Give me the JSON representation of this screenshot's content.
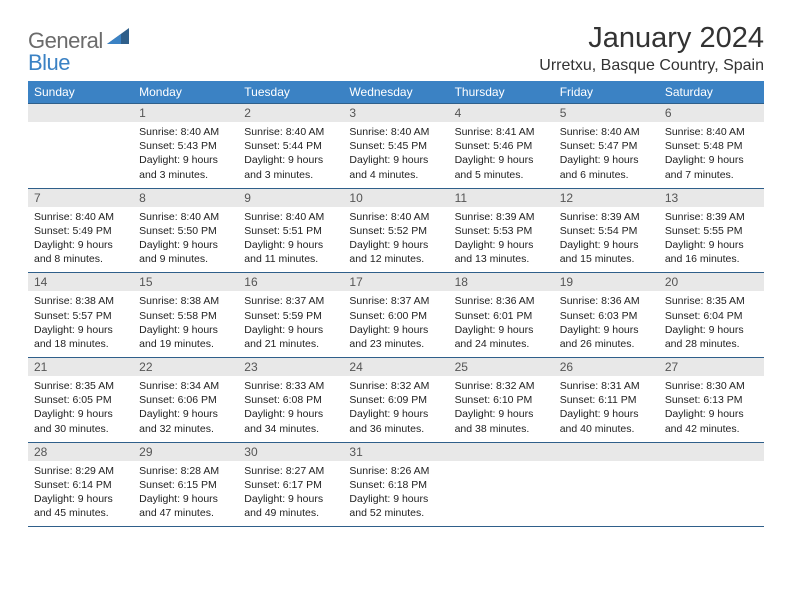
{
  "brand": {
    "part1": "General",
    "part2": "Blue"
  },
  "title": "January 2024",
  "location": "Urretxu, Basque Country, Spain",
  "colors": {
    "header_bg": "#3b82c4",
    "header_text": "#ffffff",
    "daynum_bg": "#e8e8e8",
    "daynum_text": "#555555",
    "rule": "#2f5f8a",
    "body_text": "#222222",
    "background": "#ffffff"
  },
  "typography": {
    "title_fontsize": 29,
    "location_fontsize": 16,
    "header_fontsize": 12,
    "daynum_fontsize": 12,
    "detail_fontsize": 10.5
  },
  "day_labels": [
    "Sunday",
    "Monday",
    "Tuesday",
    "Wednesday",
    "Thursday",
    "Friday",
    "Saturday"
  ],
  "weeks": [
    [
      {
        "n": "",
        "sr": "",
        "ss": "",
        "dl": ""
      },
      {
        "n": "1",
        "sr": "Sunrise: 8:40 AM",
        "ss": "Sunset: 5:43 PM",
        "dl": "Daylight: 9 hours and 3 minutes."
      },
      {
        "n": "2",
        "sr": "Sunrise: 8:40 AM",
        "ss": "Sunset: 5:44 PM",
        "dl": "Daylight: 9 hours and 3 minutes."
      },
      {
        "n": "3",
        "sr": "Sunrise: 8:40 AM",
        "ss": "Sunset: 5:45 PM",
        "dl": "Daylight: 9 hours and 4 minutes."
      },
      {
        "n": "4",
        "sr": "Sunrise: 8:41 AM",
        "ss": "Sunset: 5:46 PM",
        "dl": "Daylight: 9 hours and 5 minutes."
      },
      {
        "n": "5",
        "sr": "Sunrise: 8:40 AM",
        "ss": "Sunset: 5:47 PM",
        "dl": "Daylight: 9 hours and 6 minutes."
      },
      {
        "n": "6",
        "sr": "Sunrise: 8:40 AM",
        "ss": "Sunset: 5:48 PM",
        "dl": "Daylight: 9 hours and 7 minutes."
      }
    ],
    [
      {
        "n": "7",
        "sr": "Sunrise: 8:40 AM",
        "ss": "Sunset: 5:49 PM",
        "dl": "Daylight: 9 hours and 8 minutes."
      },
      {
        "n": "8",
        "sr": "Sunrise: 8:40 AM",
        "ss": "Sunset: 5:50 PM",
        "dl": "Daylight: 9 hours and 9 minutes."
      },
      {
        "n": "9",
        "sr": "Sunrise: 8:40 AM",
        "ss": "Sunset: 5:51 PM",
        "dl": "Daylight: 9 hours and 11 minutes."
      },
      {
        "n": "10",
        "sr": "Sunrise: 8:40 AM",
        "ss": "Sunset: 5:52 PM",
        "dl": "Daylight: 9 hours and 12 minutes."
      },
      {
        "n": "11",
        "sr": "Sunrise: 8:39 AM",
        "ss": "Sunset: 5:53 PM",
        "dl": "Daylight: 9 hours and 13 minutes."
      },
      {
        "n": "12",
        "sr": "Sunrise: 8:39 AM",
        "ss": "Sunset: 5:54 PM",
        "dl": "Daylight: 9 hours and 15 minutes."
      },
      {
        "n": "13",
        "sr": "Sunrise: 8:39 AM",
        "ss": "Sunset: 5:55 PM",
        "dl": "Daylight: 9 hours and 16 minutes."
      }
    ],
    [
      {
        "n": "14",
        "sr": "Sunrise: 8:38 AM",
        "ss": "Sunset: 5:57 PM",
        "dl": "Daylight: 9 hours and 18 minutes."
      },
      {
        "n": "15",
        "sr": "Sunrise: 8:38 AM",
        "ss": "Sunset: 5:58 PM",
        "dl": "Daylight: 9 hours and 19 minutes."
      },
      {
        "n": "16",
        "sr": "Sunrise: 8:37 AM",
        "ss": "Sunset: 5:59 PM",
        "dl": "Daylight: 9 hours and 21 minutes."
      },
      {
        "n": "17",
        "sr": "Sunrise: 8:37 AM",
        "ss": "Sunset: 6:00 PM",
        "dl": "Daylight: 9 hours and 23 minutes."
      },
      {
        "n": "18",
        "sr": "Sunrise: 8:36 AM",
        "ss": "Sunset: 6:01 PM",
        "dl": "Daylight: 9 hours and 24 minutes."
      },
      {
        "n": "19",
        "sr": "Sunrise: 8:36 AM",
        "ss": "Sunset: 6:03 PM",
        "dl": "Daylight: 9 hours and 26 minutes."
      },
      {
        "n": "20",
        "sr": "Sunrise: 8:35 AM",
        "ss": "Sunset: 6:04 PM",
        "dl": "Daylight: 9 hours and 28 minutes."
      }
    ],
    [
      {
        "n": "21",
        "sr": "Sunrise: 8:35 AM",
        "ss": "Sunset: 6:05 PM",
        "dl": "Daylight: 9 hours and 30 minutes."
      },
      {
        "n": "22",
        "sr": "Sunrise: 8:34 AM",
        "ss": "Sunset: 6:06 PM",
        "dl": "Daylight: 9 hours and 32 minutes."
      },
      {
        "n": "23",
        "sr": "Sunrise: 8:33 AM",
        "ss": "Sunset: 6:08 PM",
        "dl": "Daylight: 9 hours and 34 minutes."
      },
      {
        "n": "24",
        "sr": "Sunrise: 8:32 AM",
        "ss": "Sunset: 6:09 PM",
        "dl": "Daylight: 9 hours and 36 minutes."
      },
      {
        "n": "25",
        "sr": "Sunrise: 8:32 AM",
        "ss": "Sunset: 6:10 PM",
        "dl": "Daylight: 9 hours and 38 minutes."
      },
      {
        "n": "26",
        "sr": "Sunrise: 8:31 AM",
        "ss": "Sunset: 6:11 PM",
        "dl": "Daylight: 9 hours and 40 minutes."
      },
      {
        "n": "27",
        "sr": "Sunrise: 8:30 AM",
        "ss": "Sunset: 6:13 PM",
        "dl": "Daylight: 9 hours and 42 minutes."
      }
    ],
    [
      {
        "n": "28",
        "sr": "Sunrise: 8:29 AM",
        "ss": "Sunset: 6:14 PM",
        "dl": "Daylight: 9 hours and 45 minutes."
      },
      {
        "n": "29",
        "sr": "Sunrise: 8:28 AM",
        "ss": "Sunset: 6:15 PM",
        "dl": "Daylight: 9 hours and 47 minutes."
      },
      {
        "n": "30",
        "sr": "Sunrise: 8:27 AM",
        "ss": "Sunset: 6:17 PM",
        "dl": "Daylight: 9 hours and 49 minutes."
      },
      {
        "n": "31",
        "sr": "Sunrise: 8:26 AM",
        "ss": "Sunset: 6:18 PM",
        "dl": "Daylight: 9 hours and 52 minutes."
      },
      {
        "n": "",
        "sr": "",
        "ss": "",
        "dl": ""
      },
      {
        "n": "",
        "sr": "",
        "ss": "",
        "dl": ""
      },
      {
        "n": "",
        "sr": "",
        "ss": "",
        "dl": ""
      }
    ]
  ]
}
